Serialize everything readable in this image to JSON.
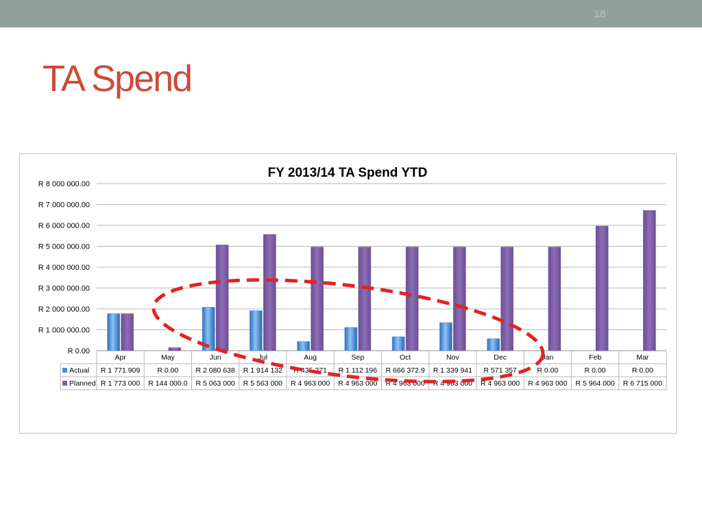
{
  "slide": {
    "number": "18",
    "title": "TA Spend"
  },
  "colors": {
    "top_bar": "#8fa19a",
    "title": "#cc4b3a",
    "actual": "#4a8fd8",
    "planned": "#7d5ea6",
    "annotation": "#e32222"
  },
  "chart_data": {
    "type": "bar",
    "title": "FY 2013/14 TA Spend YTD",
    "categories": [
      "Apr",
      "May",
      "Jun",
      "Jul",
      "Aug",
      "Sep",
      "Oct",
      "Nov",
      "Dec",
      "Jan",
      "Feb",
      "Mar"
    ],
    "y_ticks": [
      "R 0.00",
      "R 1 000 000.00",
      "R 2 000 000.00",
      "R 3 000 000.00",
      "R 4 000 000.00",
      "R 5 000 000.00",
      "R 6 000 000.00",
      "R 7 000 000.00",
      "R 8 000 000.00"
    ],
    "ylim": [
      0,
      8000000
    ],
    "grid": true,
    "legend": "data-table",
    "series": [
      {
        "name": "Actual",
        "color": "#4a8fd8",
        "values": [
          1771909,
          0,
          2080638,
          1914132,
          435271,
          1112196,
          666372.9,
          1339941,
          571357,
          0,
          0,
          0
        ],
        "labels": [
          "R 1 771 909",
          "R 0.00",
          "R 2 080 638",
          "R 1 914 132",
          "R 435 271",
          "R 1 112 196",
          "R 666 372.9",
          "R 1 339 941",
          "R 571 357",
          "R 0.00",
          "R 0.00",
          "R 0.00"
        ]
      },
      {
        "name": "Planned",
        "color": "#7d5ea6",
        "values": [
          1773000,
          144000,
          5063000,
          5563000,
          4963000,
          4963000,
          4963000,
          4963000,
          4963000,
          4963000,
          5964000,
          6715000
        ],
        "labels": [
          "R 1 773 000",
          "R 144 000.0",
          "R 5 063 000",
          "R 5 563 000",
          "R 4 963 000",
          "R 4 963 000",
          "R 4 963 000",
          "R 4 963 000",
          "R 4 963 000",
          "R 4 963 000",
          "R 5 964 000",
          "R 6 715 000"
        ]
      }
    ],
    "annotation": "dashed-ellipse"
  }
}
